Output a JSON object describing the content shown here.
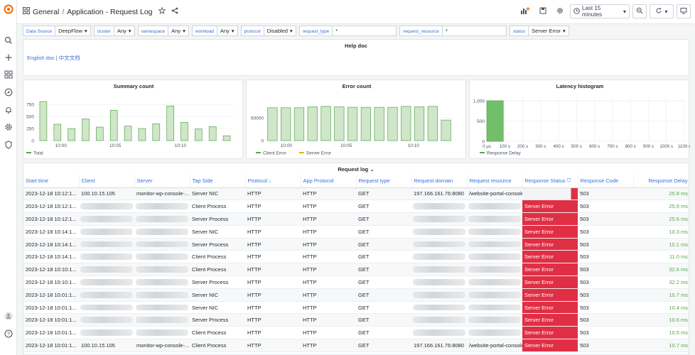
{
  "breadcrumb": {
    "root": "General",
    "title": "Application - Request Log"
  },
  "time_picker": {
    "label": "Last 15 minutes"
  },
  "variables": [
    {
      "label": "Data Source",
      "value": "DeepFlow",
      "kind": "select"
    },
    {
      "label": "cluster",
      "value": "Any",
      "kind": "select"
    },
    {
      "label": "namespace",
      "value": "Any",
      "kind": "select"
    },
    {
      "label": "workload",
      "value": "Any",
      "kind": "select"
    },
    {
      "label": "protocol",
      "value": "Disabled",
      "kind": "select"
    },
    {
      "label": "request_type",
      "value": "*",
      "kind": "text"
    },
    {
      "label": "request_resource",
      "value": "*",
      "kind": "text"
    },
    {
      "label": "status",
      "value": "Server Error",
      "kind": "select"
    }
  ],
  "help_panel": {
    "title": "Help doc",
    "link_en": "English doc",
    "separator": "|",
    "link_cn": "中文文档"
  },
  "chart_data": [
    {
      "type": "bar",
      "title": "Summary count",
      "x_ticks": [
        "10:00",
        "10:05",
        "10:10"
      ],
      "y_ticks": [
        "750",
        "500",
        "250",
        "0"
      ],
      "ylim": [
        0,
        900
      ],
      "series": [
        {
          "name": "Total",
          "color": "#56a64b",
          "values": [
            810,
            340,
            250,
            450,
            280,
            630,
            300,
            250,
            350,
            720,
            380,
            240,
            290,
            100
          ]
        }
      ]
    },
    {
      "type": "bar",
      "title": "Error count",
      "x_ticks": [
        "10:00",
        "10:05",
        "10:10"
      ],
      "y_ticks": [
        "50000",
        "0"
      ],
      "ylim": [
        0,
        95000
      ],
      "series": [
        {
          "name": "Client Error",
          "color": "#56a64b",
          "values": [
            72000,
            72000,
            72000,
            74000,
            75000,
            74000,
            73000,
            73000,
            73000,
            73000,
            75000,
            74000,
            75000,
            45000
          ]
        }
      ],
      "legend": [
        {
          "name": "Client Error",
          "color": "#56a64b"
        },
        {
          "name": "Server Error",
          "color": "#e0b400"
        }
      ]
    },
    {
      "type": "histogram",
      "title": "Latency histogram",
      "x_ticks": [
        "0 μs",
        "100 s",
        "200 s",
        "300 s",
        "400 s",
        "500 s",
        "600 s",
        "700 s",
        "800 s",
        "900 s",
        "1000 s",
        "1100 s"
      ],
      "y_ticks": [
        "1,000",
        "500",
        "0"
      ],
      "ylim": [
        0,
        1050
      ],
      "series": [
        {
          "name": "Response Delay",
          "color": "#56a64b",
          "bins": [
            {
              "from": 0,
              "to": 100,
              "count": 1000
            }
          ]
        }
      ]
    }
  ],
  "request_log": {
    "title": "Request log",
    "columns": [
      "Start time",
      "Client",
      "Server",
      "Tap Side",
      "Protocol",
      "App Protocol",
      "Request type",
      "Request domain",
      "Request resource",
      "Response Status",
      "Response Code",
      "Response Delay"
    ],
    "rows": [
      [
        "2023-12-18 10:12:1...",
        "100.10.15.105",
        "monitor-wp-console-...",
        "Server NIC",
        "HTTP",
        "HTTP",
        "GET",
        "197.166.161.76:8080",
        "/website-portal-console/health",
        "",
        "503",
        "25.8 ms"
      ],
      [
        "2023-12-18 10:12:1...",
        "",
        "",
        "Client Process",
        "HTTP",
        "HTTP",
        "GET",
        "",
        "",
        "Server Error",
        "503",
        "25.9 ms"
      ],
      [
        "2023-12-18 10:12:1...",
        "",
        "",
        "Server Process",
        "HTTP",
        "HTTP",
        "GET",
        "",
        "",
        "Server Error",
        "503",
        "25.6 ms"
      ],
      [
        "2023-12-18 10:14:1...",
        "",
        "",
        "Server NIC",
        "HTTP",
        "HTTP",
        "GET",
        "",
        "",
        "Server Error",
        "503",
        "10.3 ms"
      ],
      [
        "2023-12-18 10:14:1...",
        "",
        "",
        "Server Process",
        "HTTP",
        "HTTP",
        "GET",
        "",
        "",
        "Server Error",
        "503",
        "10.1 ms"
      ],
      [
        "2023-12-18 10:14:1...",
        "",
        "",
        "Client Process",
        "HTTP",
        "HTTP",
        "GET",
        "",
        "",
        "Server Error",
        "503",
        "11.0 ms"
      ],
      [
        "2023-12-18 10:10:1...",
        "",
        "",
        "Client Process",
        "HTTP",
        "HTTP",
        "GET",
        "",
        "",
        "Server Error",
        "503",
        "32.6 ms"
      ],
      [
        "2023-12-18 10:10:1...",
        "",
        "",
        "Server Process",
        "HTTP",
        "HTTP",
        "GET",
        "",
        "",
        "Server Error",
        "503",
        "32.2 ms"
      ],
      [
        "2023-12-18 10:01:1...",
        "",
        "",
        "Server NIC",
        "HTTP",
        "HTTP",
        "GET",
        "",
        "",
        "Server Error",
        "503",
        "10.7 ms"
      ],
      [
        "2023-12-18 10:01:1...",
        "",
        "",
        "Server NIC",
        "HTTP",
        "HTTP",
        "GET",
        "",
        "",
        "Server Error",
        "503",
        "10.4 ms"
      ],
      [
        "2023-12-18 10:01:1...",
        "",
        "",
        "Server Process",
        "HTTP",
        "HTTP",
        "GET",
        "",
        "",
        "Server Error",
        "503",
        "10.6 ms"
      ],
      [
        "2023-12-18 10:01:1...",
        "",
        "",
        "Client Process",
        "HTTP",
        "HTTP",
        "GET",
        "",
        "",
        "Server Error",
        "503",
        "10.5 ms"
      ],
      [
        "2023-12-18 10:01:1...",
        "100.10.15.105",
        "monitor-wp-console-...",
        "Client Process",
        "HTTP",
        "HTTP",
        "GET",
        "197.166.161.76:8080",
        "/website-portal-console",
        "Server Error",
        "503",
        "10.7 ms"
      ]
    ]
  },
  "colors": {
    "accent": "#3871dc",
    "error": "#e02f44",
    "bar": "#56a64b"
  }
}
